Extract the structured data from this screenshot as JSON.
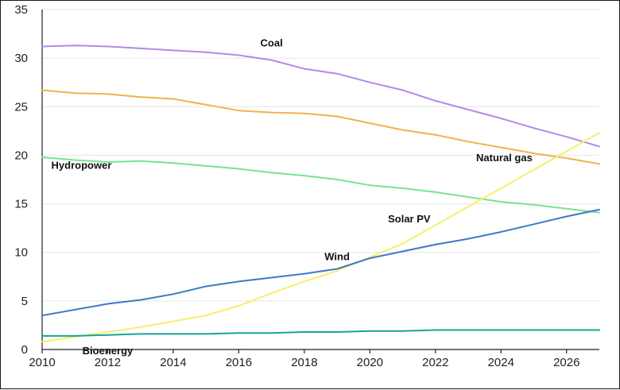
{
  "chart_data": {
    "type": "line",
    "title": "",
    "xlabel": "",
    "ylabel": "",
    "xlim": [
      2010,
      2027
    ],
    "ylim": [
      0,
      35
    ],
    "y_ticks": [
      0,
      5,
      10,
      15,
      20,
      25,
      30,
      35
    ],
    "x_ticks": [
      2010,
      2012,
      2014,
      2016,
      2018,
      2020,
      2022,
      2024,
      2026
    ],
    "grid": "horizontal",
    "legend": "none",
    "x": [
      2010,
      2011,
      2012,
      2013,
      2014,
      2015,
      2016,
      2017,
      2018,
      2019,
      2020,
      2021,
      2022,
      2023,
      2024,
      2025,
      2026,
      2027
    ],
    "series": [
      {
        "name": "Coal",
        "color": "#b28ae6",
        "values": [
          31.2,
          31.3,
          31.2,
          31.0,
          30.8,
          30.6,
          30.3,
          29.8,
          28.9,
          28.4,
          27.5,
          26.7,
          25.6,
          24.7,
          23.8,
          22.8,
          21.9,
          20.9
        ]
      },
      {
        "name": "Natural gas",
        "color": "#f1b24a",
        "values": [
          26.7,
          26.4,
          26.3,
          26.0,
          25.8,
          25.2,
          24.6,
          24.4,
          24.3,
          24.0,
          23.3,
          22.6,
          22.1,
          21.4,
          20.8,
          20.2,
          19.7,
          19.1
        ]
      },
      {
        "name": "Hydropower",
        "color": "#79e38e",
        "values": [
          19.8,
          19.5,
          19.3,
          19.4,
          19.2,
          18.9,
          18.6,
          18.2,
          17.9,
          17.5,
          16.9,
          16.6,
          16.2,
          15.7,
          15.2,
          14.9,
          14.5,
          14.1
        ]
      },
      {
        "name": "Solar PV",
        "color": "#f6ef6a",
        "values": [
          0.8,
          1.3,
          1.8,
          2.3,
          2.9,
          3.5,
          4.5,
          5.8,
          7.0,
          8.1,
          9.5,
          10.9,
          12.8,
          14.7,
          16.6,
          18.5,
          20.4,
          22.3
        ]
      },
      {
        "name": "Wind",
        "color": "#3f78c8",
        "values": [
          3.5,
          4.1,
          4.7,
          5.1,
          5.7,
          6.5,
          7.0,
          7.4,
          7.8,
          8.3,
          9.4,
          10.1,
          10.8,
          11.4,
          12.1,
          12.9,
          13.7,
          14.4
        ]
      },
      {
        "name": "Bioenergy",
        "color": "#16a596",
        "values": [
          1.4,
          1.4,
          1.5,
          1.6,
          1.6,
          1.6,
          1.7,
          1.7,
          1.8,
          1.8,
          1.9,
          1.9,
          2.0,
          2.0,
          2.0,
          2.0,
          2.0,
          2.0
        ]
      }
    ]
  }
}
